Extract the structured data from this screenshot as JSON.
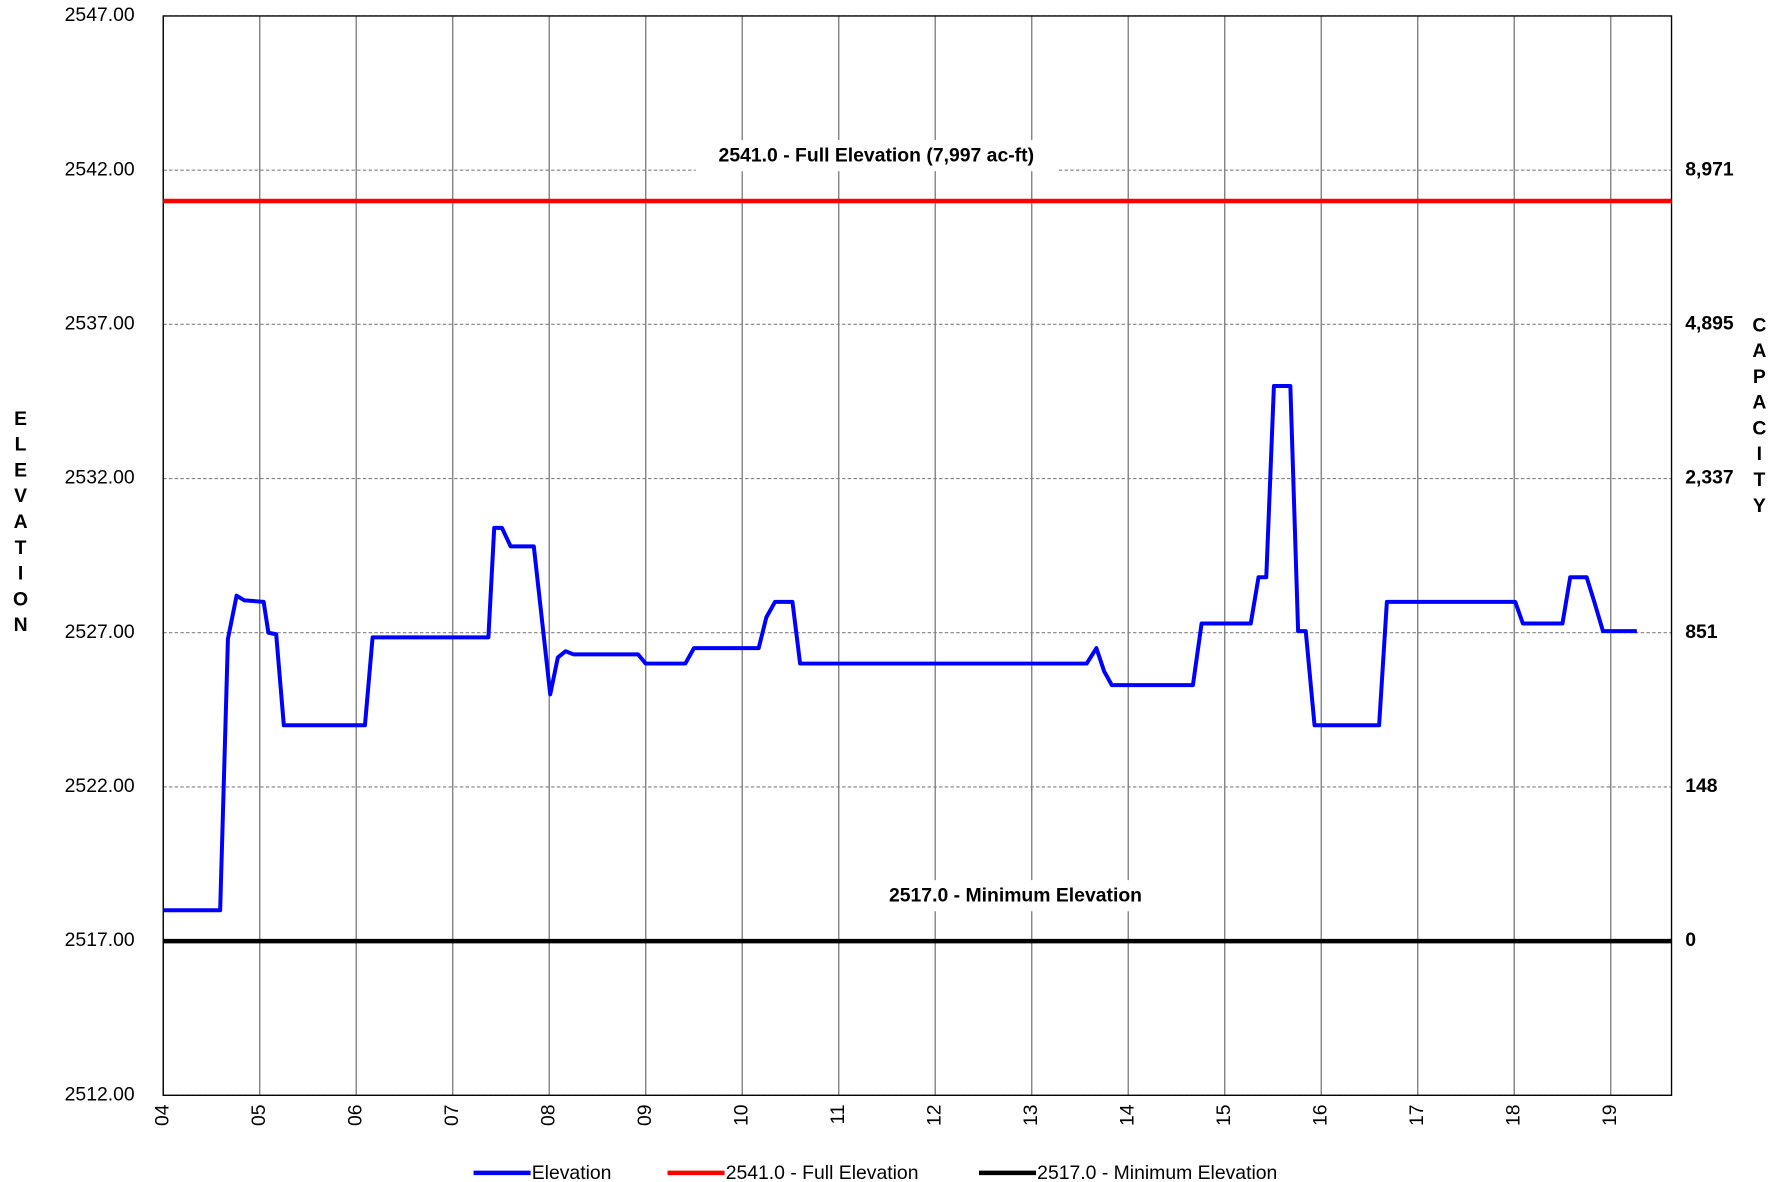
{
  "chart_data": {
    "type": "line",
    "y_label": "ELEVATION",
    "y2_label": "CAPACITY",
    "xlim": [
      4,
      19.63
    ],
    "xticks": [
      {
        "value": 4,
        "label": "04"
      },
      {
        "value": 5,
        "label": "05"
      },
      {
        "value": 6,
        "label": "06"
      },
      {
        "value": 7,
        "label": "07"
      },
      {
        "value": 8,
        "label": "08"
      },
      {
        "value": 9,
        "label": "09"
      },
      {
        "value": 10,
        "label": "10"
      },
      {
        "value": 11,
        "label": "11"
      },
      {
        "value": 12,
        "label": "12"
      },
      {
        "value": 13,
        "label": "13"
      },
      {
        "value": 14,
        "label": "14"
      },
      {
        "value": 15,
        "label": "15"
      },
      {
        "value": 16,
        "label": "16"
      },
      {
        "value": 17,
        "label": "17"
      },
      {
        "value": 18,
        "label": "18"
      },
      {
        "value": 19,
        "label": "19"
      }
    ],
    "ylim": [
      2512,
      2547
    ],
    "yticks": [
      {
        "value": 2512,
        "label": "2512.00"
      },
      {
        "value": 2517,
        "label": "2517.00"
      },
      {
        "value": 2522,
        "label": "2522.00"
      },
      {
        "value": 2527,
        "label": "2527.00"
      },
      {
        "value": 2532,
        "label": "2532.00"
      },
      {
        "value": 2537,
        "label": "2537.00"
      },
      {
        "value": 2542,
        "label": "2542.00"
      },
      {
        "value": 2547,
        "label": "2547.00"
      }
    ],
    "y2ticks": [
      {
        "value": 0,
        "label": "0",
        "elevation": 2517
      },
      {
        "value": 148,
        "label": "148",
        "elevation": 2522
      },
      {
        "value": 851,
        "label": "851",
        "elevation": 2527
      },
      {
        "value": 2337,
        "label": "2,337",
        "elevation": 2532
      },
      {
        "value": 4895,
        "label": "4,895",
        "elevation": 2537
      },
      {
        "value": 8971,
        "label": "8,971",
        "elevation": 2542
      }
    ],
    "grid": true,
    "series": [
      {
        "name": "Elevation",
        "color": "#0000ff",
        "x": [
          4,
          4.59,
          4.67,
          4.76,
          4.84,
          5.04,
          5.09,
          5.17,
          5.25,
          6.09,
          6.17,
          7.37,
          7.43,
          7.51,
          7.6,
          7.84,
          8.01,
          8.09,
          8.17,
          8.25,
          8.92,
          9.0,
          9.41,
          9.5,
          10.17,
          10.25,
          10.34,
          10.52,
          10.6,
          13.57,
          13.67,
          13.75,
          13.83,
          14.67,
          14.76,
          15.27,
          15.35,
          15.43,
          15.51,
          15.68,
          15.76,
          15.84,
          15.93,
          16.6,
          16.68,
          18.01,
          18.09,
          18.5,
          18.58,
          18.75,
          18.83,
          18.92,
          19.27
        ],
        "values": [
          2518.0,
          2518.0,
          2526.8,
          2528.2,
          2528.05,
          2528.0,
          2527.0,
          2526.95,
          2524.0,
          2524.0,
          2526.85,
          2526.85,
          2530.4,
          2530.4,
          2529.8,
          2529.8,
          2525.0,
          2526.2,
          2526.4,
          2526.3,
          2526.3,
          2526.0,
          2526.0,
          2526.5,
          2526.5,
          2527.5,
          2528.0,
          2528.0,
          2526.0,
          2526.0,
          2526.5,
          2525.75,
          2525.3,
          2525.3,
          2527.3,
          2527.3,
          2528.8,
          2528.8,
          2535.0,
          2535.0,
          2527.05,
          2527.05,
          2524.0,
          2524.0,
          2528.0,
          2528.0,
          2527.3,
          2527.3,
          2528.8,
          2528.8,
          2528.0,
          2527.05,
          2527.05
        ]
      }
    ],
    "reference_lines": [
      {
        "name": "2541.0 - Full Elevation",
        "color": "#ff0000",
        "value": 2541,
        "annotation": "2541.0 - Full Elevation (7,997 ac-ft)"
      },
      {
        "name": "2517.0 - Minimum Elevation",
        "color": "#000000",
        "value": 2517,
        "annotation": "2517.0 - Minimum Elevation"
      }
    ]
  }
}
